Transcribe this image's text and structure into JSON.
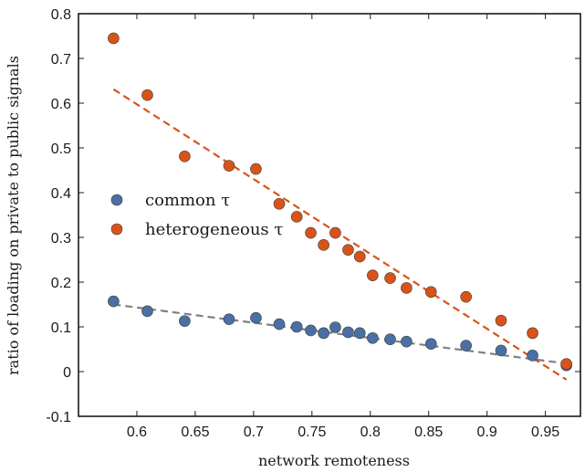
{
  "chart_data": {
    "type": "scatter",
    "xlabel": "network remoteness",
    "ylabel": "ratio of loading on private to public signals",
    "xlim": [
      0.55,
      0.98
    ],
    "ylim": [
      -0.1,
      0.8
    ],
    "xticks": [
      0.6,
      0.65,
      0.7,
      0.75,
      0.8,
      0.85,
      0.9,
      0.95
    ],
    "yticks": [
      -0.1,
      0,
      0.1,
      0.2,
      0.3,
      0.4,
      0.5,
      0.6,
      0.7,
      0.8
    ],
    "xtick_labels": [
      "0.6",
      "0.65",
      "0.7",
      "0.75",
      "0.8",
      "0.85",
      "0.9",
      "0.95"
    ],
    "ytick_labels": [
      "-0.1",
      "0",
      "0.1",
      "0.2",
      "0.3",
      "0.4",
      "0.5",
      "0.6",
      "0.7",
      "0.8"
    ],
    "grid": false,
    "legend_position": "middle-left",
    "series": [
      {
        "name": "common τ",
        "color": "#4a6fa5",
        "trend_color": "#808080",
        "x": [
          0.58,
          0.609,
          0.641,
          0.679,
          0.702,
          0.722,
          0.737,
          0.749,
          0.76,
          0.77,
          0.781,
          0.791,
          0.802,
          0.817,
          0.831,
          0.852,
          0.882,
          0.912,
          0.939,
          0.968
        ],
        "y": [
          0.157,
          0.135,
          0.113,
          0.117,
          0.12,
          0.106,
          0.1,
          0.092,
          0.086,
          0.099,
          0.088,
          0.086,
          0.075,
          0.072,
          0.067,
          0.062,
          0.058,
          0.047,
          0.036,
          0.014
        ],
        "trend": [
          [
            0.58,
            0.15
          ],
          [
            0.968,
            0.018
          ]
        ]
      },
      {
        "name": "heterogeneous τ",
        "color": "#d95319",
        "trend_color": "#d95319",
        "x": [
          0.58,
          0.609,
          0.641,
          0.679,
          0.702,
          0.722,
          0.737,
          0.749,
          0.76,
          0.77,
          0.781,
          0.791,
          0.802,
          0.817,
          0.831,
          0.852,
          0.882,
          0.912,
          0.939,
          0.968
        ],
        "y": [
          0.745,
          0.618,
          0.481,
          0.46,
          0.453,
          0.375,
          0.346,
          0.31,
          0.283,
          0.31,
          0.272,
          0.257,
          0.215,
          0.209,
          0.187,
          0.178,
          0.167,
          0.114,
          0.086,
          0.017
        ],
        "trend": [
          [
            0.58,
            0.631
          ],
          [
            0.968,
            -0.018
          ]
        ]
      }
    ]
  }
}
